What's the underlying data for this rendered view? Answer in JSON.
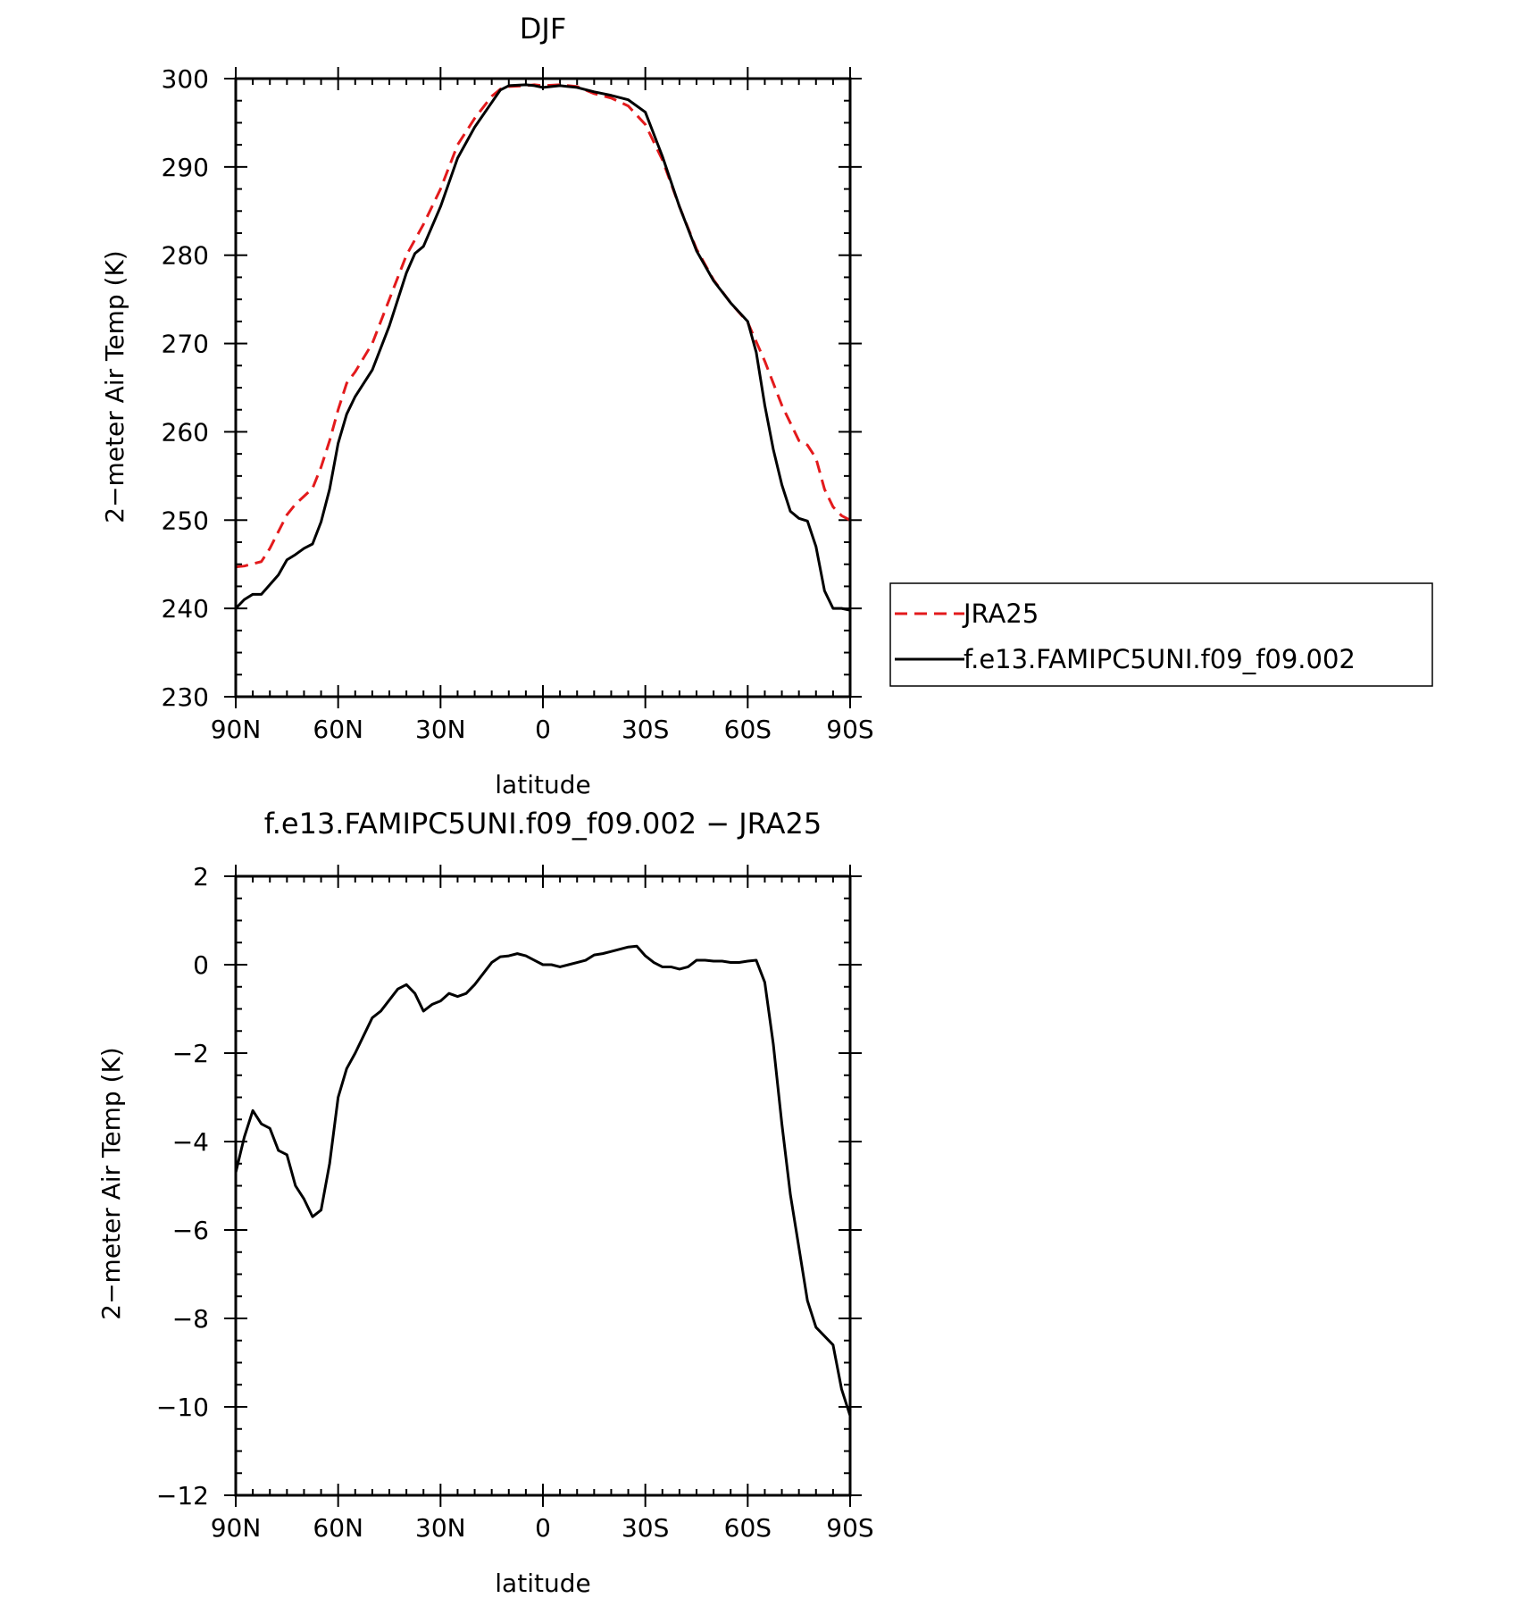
{
  "chart_data": [
    {
      "type": "line",
      "title": "DJF",
      "xlabel": "latitude",
      "ylabel": "2−meter Air Temp (K)",
      "xlim": [
        90,
        -90
      ],
      "ylim": [
        230,
        300
      ],
      "xticks": [
        90,
        60,
        30,
        0,
        -30,
        -60,
        -90
      ],
      "xtick_labels": [
        "90N",
        "60N",
        "30N",
        "0",
        "30S",
        "60S",
        "90S"
      ],
      "yticks": [
        230,
        240,
        250,
        260,
        270,
        280,
        290,
        300
      ],
      "ytick_labels": [
        "230",
        "240",
        "250",
        "260",
        "270",
        "280",
        "290",
        "300"
      ],
      "grid": false,
      "legend_position": "right",
      "series": [
        {
          "name": "JRA25",
          "color": "#e31a1c",
          "dash": "dashed",
          "x": [
            90,
            87.5,
            82.5,
            80,
            75,
            72.5,
            67.5,
            65,
            62.5,
            60,
            57.5,
            55,
            50,
            45,
            40,
            35,
            30,
            25,
            20,
            15,
            12.5,
            10,
            5,
            2.5,
            0,
            -5,
            -10,
            -15,
            -20,
            -25,
            -30,
            -35,
            -40,
            -45,
            -50,
            -55,
            -60,
            -65,
            -67.5,
            -70,
            -75,
            -77.5,
            -80,
            -82.5,
            -85,
            -87.5,
            -90
          ],
          "y": [
            244.7,
            244.8,
            245.3,
            246.8,
            250.6,
            251.8,
            253.6,
            256.0,
            259.0,
            262.5,
            265.5,
            266.8,
            270.0,
            275.0,
            280.0,
            283.5,
            287.5,
            292.5,
            295.5,
            298.0,
            298.8,
            299.1,
            299.2,
            299.3,
            299.2,
            299.3,
            299.1,
            298.3,
            297.8,
            296.9,
            294.8,
            290.8,
            285.5,
            280.7,
            277.2,
            274.6,
            272.4,
            268.0,
            265.5,
            263.0,
            259.0,
            258.5,
            257.0,
            253.5,
            251.5,
            250.5,
            250.0
          ]
        },
        {
          "name": "f.e13.FAMIPC5UNI.f09_f09.002",
          "color": "#000000",
          "dash": "solid",
          "x": [
            90,
            87.5,
            85,
            82.5,
            80,
            77.5,
            75,
            72.5,
            70,
            67.5,
            65,
            62.5,
            60,
            57.5,
            55,
            50,
            45,
            40,
            37.5,
            35,
            30,
            25,
            20,
            15,
            12.5,
            10,
            5,
            2.5,
            0,
            -5,
            -10,
            -15,
            -20,
            -25,
            -30,
            -35,
            -40,
            -45,
            -50,
            -55,
            -60,
            -62.5,
            -65,
            -67.5,
            -70,
            -72.5,
            -75,
            -77.5,
            -80,
            -82.5,
            -85,
            -87.5,
            -90
          ],
          "y": [
            240.0,
            241.0,
            241.6,
            241.6,
            242.7,
            243.8,
            245.5,
            246.1,
            246.8,
            247.3,
            249.8,
            253.5,
            258.7,
            262.0,
            264.0,
            267.0,
            272.0,
            278.0,
            280.2,
            281.0,
            285.5,
            291.0,
            294.5,
            297.3,
            298.7,
            299.2,
            299.3,
            299.2,
            299.0,
            299.2,
            299.0,
            298.5,
            298.1,
            297.6,
            296.2,
            291.2,
            285.5,
            280.5,
            277.1,
            274.6,
            272.5,
            269.0,
            263.0,
            258.0,
            254.0,
            251.0,
            250.2,
            249.9,
            247.0,
            242.0,
            240.0,
            240.0,
            239.8
          ]
        }
      ]
    },
    {
      "type": "line",
      "title": "f.e13.FAMIPC5UNI.f09_f09.002 − JRA25",
      "xlabel": "latitude",
      "ylabel": "2−meter Air Temp (K)",
      "xlim": [
        90,
        -90
      ],
      "ylim": [
        -12,
        2
      ],
      "xticks": [
        90,
        60,
        30,
        0,
        -30,
        -60,
        -90
      ],
      "xtick_labels": [
        "90N",
        "60N",
        "30N",
        "0",
        "30S",
        "60S",
        "90S"
      ],
      "yticks": [
        2,
        0,
        -2,
        -4,
        -6,
        -8,
        -10,
        -12
      ],
      "ytick_labels": [
        "2",
        "0",
        "−2",
        "−4",
        "−6",
        "−8",
        "−10",
        "−12"
      ],
      "grid": false,
      "series": [
        {
          "color": "#000000",
          "dash": "solid",
          "x": [
            90,
            87.5,
            85,
            82.5,
            80,
            77.5,
            75,
            72.5,
            70,
            67.5,
            65,
            62.5,
            60,
            57.5,
            55,
            52.5,
            50,
            47.5,
            45,
            42.5,
            40,
            37.5,
            35,
            32.5,
            30,
            27.5,
            25,
            22.5,
            20,
            17.5,
            15,
            12.5,
            10,
            7.5,
            5,
            2.5,
            0,
            -2.5,
            -5,
            -7.5,
            -10,
            -12.5,
            -15,
            -17.5,
            -20,
            -22.5,
            -25,
            -27.5,
            -30,
            -32.5,
            -35,
            -37.5,
            -40,
            -42.5,
            -45,
            -47.5,
            -50,
            -52.5,
            -55,
            -57.5,
            -60,
            -62.5,
            -65,
            -67.5,
            -70,
            -72.5,
            -75,
            -77.5,
            -80,
            -82.5,
            -85,
            -87.5,
            -90
          ],
          "y": [
            -4.7,
            -3.9,
            -3.3,
            -3.6,
            -3.7,
            -4.2,
            -4.3,
            -5.0,
            -5.3,
            -5.7,
            -5.55,
            -4.5,
            -3.0,
            -2.35,
            -2.0,
            -1.6,
            -1.2,
            -1.05,
            -0.8,
            -0.55,
            -0.45,
            -0.65,
            -1.05,
            -0.9,
            -0.82,
            -0.65,
            -0.72,
            -0.65,
            -0.45,
            -0.2,
            0.05,
            0.18,
            0.2,
            0.25,
            0.2,
            0.1,
            0.0,
            0.0,
            -0.05,
            0.0,
            0.05,
            0.1,
            0.22,
            0.25,
            0.3,
            0.35,
            0.4,
            0.42,
            0.2,
            0.05,
            -0.05,
            -0.05,
            -0.1,
            -0.05,
            0.1,
            0.1,
            0.08,
            0.08,
            0.05,
            0.05,
            0.08,
            0.1,
            -0.4,
            -1.8,
            -3.6,
            -5.2,
            -6.4,
            -7.6,
            -8.2,
            -8.4,
            -8.6,
            -9.6,
            -10.2
          ]
        }
      ]
    }
  ]
}
